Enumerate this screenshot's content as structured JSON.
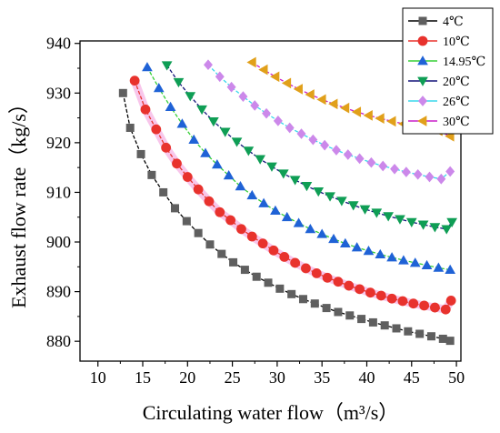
{
  "chart_data": {
    "type": "scatter",
    "xlabel": "Circulating water flow（m³/s）",
    "ylabel": "Exhaust flow rate（kg/s）",
    "xlim": [
      8,
      50.5
    ],
    "ylim": [
      876,
      940.5
    ],
    "xticks": [
      10,
      15,
      20,
      25,
      30,
      35,
      40,
      45,
      50
    ],
    "yticks": [
      880,
      890,
      900,
      910,
      920,
      930,
      940
    ],
    "legend_position": "top-right",
    "grid": false,
    "series": [
      {
        "name": "4℃",
        "color": "#5f5f5f",
        "line_color": "#000000",
        "marker": "square",
        "x": [
          12.8,
          13.6,
          14.8,
          16.0,
          17.3,
          18.6,
          19.9,
          21.2,
          22.5,
          23.8,
          25.1,
          26.4,
          27.7,
          29.0,
          30.3,
          31.6,
          32.9,
          34.2,
          35.5,
          36.8,
          38.1,
          39.4,
          40.7,
          42.0,
          43.3,
          44.6,
          45.9,
          47.2,
          48.5,
          49.3
        ],
        "y": [
          930.0,
          923.0,
          917.7,
          913.5,
          910.0,
          906.8,
          904.2,
          901.8,
          899.5,
          897.6,
          895.9,
          894.4,
          893.0,
          891.8,
          890.6,
          889.5,
          888.5,
          887.6,
          886.7,
          885.9,
          885.2,
          884.5,
          883.8,
          883.2,
          882.6,
          882.0,
          881.5,
          881.0,
          880.5,
          880.1
        ]
      },
      {
        "name": "10℃",
        "color": "#e8322d",
        "line_color": "#e8322d",
        "glow": "#f6b8e6",
        "marker": "circle",
        "x": [
          14.1,
          15.3,
          16.5,
          17.6,
          18.8,
          20.0,
          21.2,
          22.4,
          23.6,
          24.8,
          26.0,
          27.2,
          28.4,
          29.6,
          30.8,
          32.0,
          33.2,
          34.4,
          35.6,
          36.8,
          38.0,
          39.2,
          40.4,
          41.6,
          42.8,
          44.0,
          45.2,
          46.4,
          47.6,
          48.8,
          49.4
        ],
        "y": [
          932.5,
          926.7,
          922.7,
          919.0,
          915.8,
          913.1,
          910.6,
          908.2,
          906.0,
          904.4,
          902.6,
          901.1,
          899.7,
          898.3,
          897.0,
          895.8,
          894.7,
          893.7,
          892.8,
          892.0,
          891.2,
          890.5,
          889.8,
          889.2,
          888.6,
          888.1,
          887.6,
          887.2,
          886.8,
          886.4,
          888.2
        ]
      },
      {
        "name": "14.95℃",
        "color": "#1f62d6",
        "line_color": "#36cf36",
        "marker": "triangle-up",
        "x": [
          15.5,
          16.8,
          18.1,
          19.4,
          20.7,
          22.0,
          23.3,
          24.6,
          25.9,
          27.2,
          28.5,
          29.8,
          31.1,
          32.4,
          33.7,
          35.0,
          36.3,
          37.6,
          38.9,
          40.2,
          41.5,
          42.8,
          44.1,
          45.4,
          46.7,
          48.0,
          49.3
        ],
        "y": [
          935.2,
          931.0,
          927.2,
          923.8,
          920.6,
          917.9,
          915.6,
          913.4,
          911.2,
          909.4,
          907.8,
          906.3,
          905.0,
          903.8,
          902.6,
          901.6,
          900.6,
          899.7,
          898.9,
          898.2,
          897.5,
          896.9,
          896.3,
          895.8,
          895.3,
          894.8,
          894.4
        ]
      },
      {
        "name": "20℃",
        "color": "#0f9e55",
        "line_color": "#13137a",
        "marker": "triangle-down",
        "x": [
          17.7,
          19.0,
          20.3,
          21.6,
          22.9,
          24.2,
          25.5,
          26.8,
          28.1,
          29.4,
          30.7,
          32.0,
          33.3,
          34.6,
          35.9,
          37.2,
          38.5,
          39.8,
          41.1,
          42.4,
          43.7,
          45.0,
          46.3,
          47.6,
          48.9,
          49.5
        ],
        "y": [
          935.6,
          932.2,
          929.4,
          926.7,
          924.3,
          922.2,
          920.2,
          918.4,
          916.7,
          915.2,
          913.8,
          912.5,
          911.3,
          910.2,
          909.2,
          908.3,
          907.4,
          906.6,
          905.9,
          905.2,
          904.6,
          904.0,
          903.5,
          903.0,
          902.6,
          904.0
        ]
      },
      {
        "name": "26℃",
        "color": "#cc88ea",
        "line_color": "#39d7ec",
        "marker": "diamond",
        "x": [
          22.3,
          23.6,
          24.9,
          26.2,
          27.5,
          28.8,
          30.1,
          31.4,
          32.7,
          34.0,
          35.3,
          36.6,
          37.9,
          39.2,
          40.5,
          41.8,
          43.1,
          44.4,
          45.7,
          47.0,
          48.3,
          49.3
        ],
        "y": [
          935.7,
          933.3,
          931.2,
          929.3,
          927.5,
          925.9,
          924.4,
          923.0,
          921.8,
          920.6,
          919.5,
          918.5,
          917.6,
          916.8,
          916.0,
          915.3,
          914.7,
          914.1,
          913.6,
          913.1,
          912.7,
          914.2
        ]
      },
      {
        "name": "30℃",
        "color": "#e1a01a",
        "line_color": "#c81ec8",
        "marker": "triangle-left",
        "x": [
          27.2,
          28.5,
          29.8,
          31.1,
          32.4,
          33.7,
          35.0,
          36.3,
          37.6,
          38.9,
          40.2,
          41.5,
          42.8,
          44.1,
          45.4,
          46.7,
          48.0,
          49.3
        ],
        "y": [
          936.2,
          934.7,
          933.3,
          932.0,
          930.8,
          929.7,
          928.7,
          927.8,
          927.0,
          926.2,
          925.5,
          924.9,
          924.3,
          923.8,
          923.3,
          922.8,
          922.4,
          921.3
        ]
      }
    ]
  }
}
